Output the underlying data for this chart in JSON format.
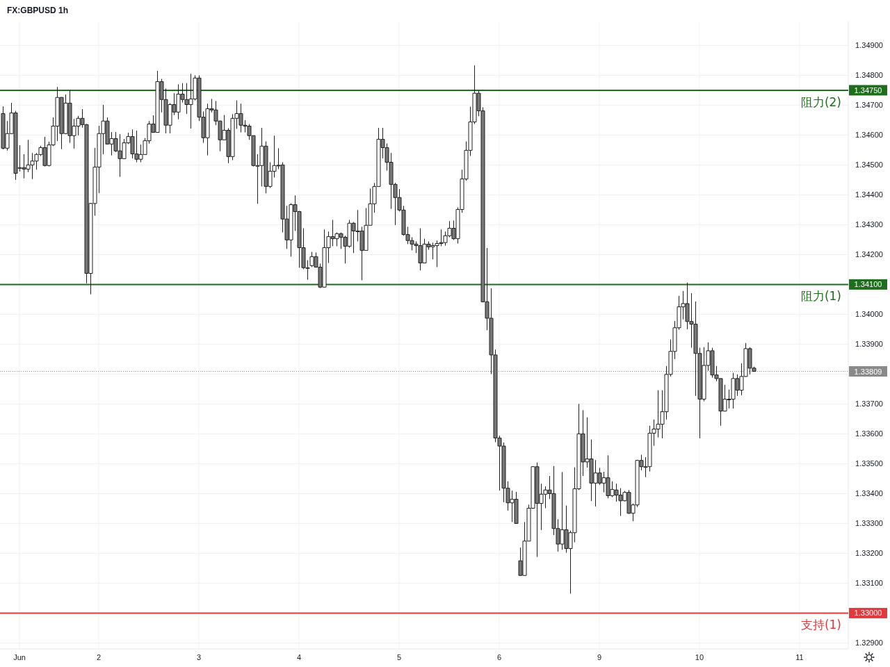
{
  "chart_data": {
    "type": "candlestick",
    "title": "FX:GBPUSD 1h",
    "categories": [
      null,
      null,
      null,
      null,
      "Jun",
      null,
      null,
      null,
      null,
      null,
      null,
      null,
      null,
      null,
      null,
      null,
      null,
      null,
      null,
      null,
      null,
      null,
      null,
      "2",
      null,
      null,
      null,
      null,
      null,
      null,
      null,
      null,
      null,
      null,
      null,
      null,
      null,
      null,
      null,
      null,
      null,
      null,
      null,
      null,
      null,
      null,
      null,
      "3",
      null,
      null,
      null,
      null,
      null,
      null,
      null,
      null,
      null,
      null,
      null,
      null,
      null,
      null,
      null,
      null,
      null,
      null,
      null,
      null,
      null,
      null,
      null,
      "4",
      null,
      null,
      null,
      null,
      null,
      null,
      null,
      null,
      null,
      null,
      null,
      null,
      null,
      null,
      null,
      null,
      null,
      null,
      null,
      null,
      null,
      null,
      null,
      "5",
      null,
      null,
      null,
      null,
      null,
      null,
      null,
      null,
      null,
      null,
      null,
      null,
      null,
      null,
      null,
      null,
      null,
      null,
      null,
      null,
      null,
      null,
      null,
      "6",
      null,
      null,
      null,
      null,
      null,
      null,
      null,
      null,
      null,
      null,
      null,
      null,
      null,
      null,
      null,
      null,
      null,
      null,
      null,
      null,
      null,
      null,
      null,
      "9",
      null,
      null,
      null,
      null,
      null,
      null,
      null,
      null,
      null,
      null,
      null,
      null,
      null,
      null,
      null,
      null,
      null,
      null,
      null,
      null,
      null,
      null,
      null,
      "10",
      null,
      null,
      null,
      null,
      null,
      null,
      null,
      null,
      null,
      null,
      null,
      null,
      null,
      null,
      null,
      null,
      null,
      null,
      null,
      null,
      null,
      null,
      null,
      "11",
      null,
      null,
      null,
      null,
      null,
      null,
      null,
      null,
      null,
      null,
      null
    ],
    "ohlc": [
      [
        1.34672,
        1.34696,
        1.34552,
        1.34556
      ],
      [
        1.34556,
        1.34647,
        1.34548,
        1.34605
      ],
      [
        1.34605,
        1.34708,
        1.34603,
        1.34674
      ],
      [
        1.34674,
        1.34681,
        1.3445,
        1.34472
      ],
      [
        1.34491,
        1.34566,
        1.34478,
        1.34491
      ],
      [
        1.34491,
        1.34536,
        1.34455,
        1.34486
      ],
      [
        1.34486,
        1.34584,
        1.34476,
        1.345
      ],
      [
        1.345,
        1.3454,
        1.34453,
        1.34513
      ],
      [
        1.34513,
        1.3454,
        1.34484,
        1.34535
      ],
      [
        1.34535,
        1.34564,
        1.3453,
        1.34558
      ],
      [
        1.34558,
        1.34594,
        1.34495,
        1.34498
      ],
      [
        1.34498,
        1.34578,
        1.34495,
        1.34567
      ],
      [
        1.34567,
        1.34659,
        1.34563,
        1.3463
      ],
      [
        1.3463,
        1.34761,
        1.3458,
        1.34726
      ],
      [
        1.34726,
        1.34727,
        1.34553,
        1.34605
      ],
      [
        1.34605,
        1.34736,
        1.34603,
        1.34707
      ],
      [
        1.34707,
        1.34751,
        1.34574,
        1.34598
      ],
      [
        1.34598,
        1.34654,
        1.34555,
        1.3463
      ],
      [
        1.3463,
        1.34664,
        1.34599,
        1.34656
      ],
      [
        1.34656,
        1.34687,
        1.34625,
        1.34635
      ],
      [
        1.34635,
        1.34637,
        1.34104,
        1.34137
      ],
      [
        1.34137,
        1.34373,
        1.34067,
        1.34371
      ],
      [
        1.34371,
        1.34557,
        1.3433,
        1.34493
      ],
      [
        1.34493,
        1.34631,
        1.34406,
        1.34605
      ],
      [
        1.34605,
        1.34701,
        1.34536,
        1.34647
      ],
      [
        1.34647,
        1.34659,
        1.34568,
        1.3457
      ],
      [
        1.3457,
        1.3461,
        1.34532,
        1.34588
      ],
      [
        1.34588,
        1.3461,
        1.34543,
        1.34547
      ],
      [
        1.34547,
        1.34603,
        1.3446,
        1.34521
      ],
      [
        1.34521,
        1.34587,
        1.3452,
        1.34574
      ],
      [
        1.34574,
        1.34608,
        1.3457,
        1.34595
      ],
      [
        1.34595,
        1.34619,
        1.34522,
        1.34537
      ],
      [
        1.34537,
        1.34615,
        1.34509,
        1.34519
      ],
      [
        1.34519,
        1.34568,
        1.34509,
        1.34535
      ],
      [
        1.34535,
        1.3459,
        1.34535,
        1.34581
      ],
      [
        1.34581,
        1.34647,
        1.34571,
        1.34637
      ],
      [
        1.34637,
        1.34666,
        1.34609,
        1.34609
      ],
      [
        1.34609,
        1.34815,
        1.34609,
        1.34779
      ],
      [
        1.34779,
        1.34788,
        1.34676,
        1.34719
      ],
      [
        1.34719,
        1.34756,
        1.34606,
        1.34633
      ],
      [
        1.34633,
        1.34707,
        1.34606,
        1.34702
      ],
      [
        1.34702,
        1.3474,
        1.34667,
        1.34677
      ],
      [
        1.34677,
        1.3477,
        1.34653,
        1.34737
      ],
      [
        1.34737,
        1.34774,
        1.34709,
        1.34719
      ],
      [
        1.34719,
        1.34774,
        1.34671,
        1.34702
      ],
      [
        1.34702,
        1.34805,
        1.34622,
        1.34721
      ],
      [
        1.34721,
        1.348,
        1.34716,
        1.34791
      ],
      [
        1.34791,
        1.348,
        1.34647,
        1.3466
      ],
      [
        1.3466,
        1.34679,
        1.34574,
        1.34591
      ],
      [
        1.34591,
        1.34705,
        1.34532,
        1.34688
      ],
      [
        1.34688,
        1.34721,
        1.34676,
        1.34684
      ],
      [
        1.34684,
        1.34714,
        1.34633,
        1.34647
      ],
      [
        1.34647,
        1.34648,
        1.34546,
        1.34584
      ],
      [
        1.34584,
        1.34667,
        1.34583,
        1.34616
      ],
      [
        1.34616,
        1.34623,
        1.34506,
        1.34528
      ],
      [
        1.34528,
        1.3467,
        1.34516,
        1.34656
      ],
      [
        1.34656,
        1.34716,
        1.34621,
        1.34672
      ],
      [
        1.34672,
        1.34705,
        1.34609,
        1.34633
      ],
      [
        1.34633,
        1.3465,
        1.34609,
        1.3463
      ],
      [
        1.3463,
        1.34637,
        1.34584,
        1.34598
      ],
      [
        1.34598,
        1.34599,
        1.34495,
        1.34498
      ],
      [
        1.34498,
        1.34536,
        1.3437,
        1.34498
      ],
      [
        1.34498,
        1.34624,
        1.34428,
        1.34563
      ],
      [
        1.34563,
        1.34579,
        1.34405,
        1.34428
      ],
      [
        1.34428,
        1.34509,
        1.34423,
        1.34479
      ],
      [
        1.34479,
        1.34598,
        1.34458,
        1.34498
      ],
      [
        1.34499,
        1.34556,
        1.34486,
        1.34498
      ],
      [
        1.345,
        1.34509,
        1.34274,
        1.34319
      ],
      [
        1.34319,
        1.34363,
        1.34219,
        1.34249
      ],
      [
        1.34249,
        1.34372,
        1.34193,
        1.34367
      ],
      [
        1.34367,
        1.34398,
        1.34279,
        1.34344
      ],
      [
        1.34344,
        1.34346,
        1.34156,
        1.34223
      ],
      [
        1.34223,
        1.34288,
        1.34151,
        1.34156
      ],
      [
        1.34156,
        1.34181,
        1.34116,
        1.34156
      ],
      [
        1.34163,
        1.34209,
        1.34158,
        1.34193
      ],
      [
        1.34193,
        1.34207,
        1.34157,
        1.34158
      ],
      [
        1.34158,
        1.3417,
        1.34088,
        1.34091
      ],
      [
        1.34091,
        1.34284,
        1.3409,
        1.34223
      ],
      [
        1.34223,
        1.34277,
        1.34172,
        1.3426
      ],
      [
        1.3426,
        1.34316,
        1.34228,
        1.34253
      ],
      [
        1.34253,
        1.34274,
        1.34228,
        1.3427
      ],
      [
        1.3427,
        1.34274,
        1.34219,
        1.34258
      ],
      [
        1.34258,
        1.34263,
        1.3417,
        1.34228
      ],
      [
        1.34228,
        1.34316,
        1.34223,
        1.34305
      ],
      [
        1.34305,
        1.34309,
        1.34205,
        1.34279
      ],
      [
        1.34279,
        1.34349,
        1.34244,
        1.34279
      ],
      [
        1.34279,
        1.34293,
        1.34114,
        1.34214
      ],
      [
        1.34214,
        1.34356,
        1.34214,
        1.34298
      ],
      [
        1.34298,
        1.34421,
        1.34298,
        1.3437
      ],
      [
        1.3437,
        1.3444,
        1.3434,
        1.34428
      ],
      [
        1.34428,
        1.34624,
        1.34428,
        1.34586
      ],
      [
        1.34586,
        1.34624,
        1.34522,
        1.34558
      ],
      [
        1.34558,
        1.34572,
        1.34481,
        1.34509
      ],
      [
        1.34509,
        1.3454,
        1.34353,
        1.34435
      ],
      [
        1.34435,
        1.3444,
        1.34299,
        1.34391
      ],
      [
        1.34391,
        1.34419,
        1.34344,
        1.34349
      ],
      [
        1.34349,
        1.34363,
        1.34263,
        1.34267
      ],
      [
        1.34267,
        1.34293,
        1.34235,
        1.34247
      ],
      [
        1.34247,
        1.34258,
        1.34214,
        1.34235
      ],
      [
        1.34235,
        1.34244,
        1.34205,
        1.3423
      ],
      [
        1.3423,
        1.34288,
        1.34147,
        1.34172
      ],
      [
        1.34172,
        1.34253,
        1.34172,
        1.34235
      ],
      [
        1.34235,
        1.34244,
        1.34216,
        1.34226
      ],
      [
        1.34226,
        1.3424,
        1.34184,
        1.3423
      ],
      [
        1.3423,
        1.34247,
        1.34158,
        1.34237
      ],
      [
        1.3424,
        1.34284,
        1.34228,
        1.34237
      ],
      [
        1.3424,
        1.34277,
        1.3423,
        1.34263
      ],
      [
        1.34263,
        1.34312,
        1.34258,
        1.34288
      ],
      [
        1.34288,
        1.34314,
        1.34249,
        1.34253
      ],
      [
        1.34253,
        1.34358,
        1.34237,
        1.34351
      ],
      [
        1.34351,
        1.34484,
        1.3434,
        1.34453
      ],
      [
        1.34453,
        1.34579,
        1.34447,
        1.34549
      ],
      [
        1.34549,
        1.34695,
        1.3453,
        1.34644
      ],
      [
        1.34644,
        1.34833,
        1.34637,
        1.3474
      ],
      [
        1.3474,
        1.34749,
        1.34663,
        1.34681
      ],
      [
        1.34681,
        1.34693,
        1.3404,
        1.34042
      ],
      [
        1.34042,
        1.34222,
        1.33947,
        1.33987
      ],
      [
        1.33987,
        1.34087,
        1.338,
        1.33864
      ],
      [
        1.33864,
        1.33882,
        1.33572,
        1.33586
      ],
      [
        1.33586,
        1.33594,
        1.3341,
        1.33559
      ],
      [
        1.33559,
        1.33571,
        1.33371,
        1.33418
      ],
      [
        1.33418,
        1.33441,
        1.33343,
        1.33369
      ],
      [
        1.33369,
        1.3341,
        1.33305,
        1.33381
      ],
      [
        1.33381,
        1.33406,
        1.33299,
        1.333
      ],
      [
        1.33175,
        1.33219,
        1.33125,
        1.33126
      ],
      [
        1.33126,
        1.33305,
        1.33125,
        1.33241
      ],
      [
        1.33241,
        1.33363,
        1.33241,
        1.33351
      ],
      [
        1.33351,
        1.33492,
        1.33349,
        1.3349
      ],
      [
        1.3349,
        1.33504,
        1.33188,
        1.33367
      ],
      [
        1.33367,
        1.33433,
        1.33278,
        1.33398
      ],
      [
        1.33398,
        1.33424,
        1.33351,
        1.33412
      ],
      [
        1.33412,
        1.33459,
        1.33382,
        1.334
      ],
      [
        1.334,
        1.33492,
        1.33261,
        1.33283
      ],
      [
        1.33283,
        1.33314,
        1.33206,
        1.33231
      ],
      [
        1.33231,
        1.33472,
        1.33212,
        1.33279
      ],
      [
        1.33279,
        1.3336,
        1.33202,
        1.33216
      ],
      [
        1.33216,
        1.33276,
        1.33065,
        1.33269
      ],
      [
        1.33269,
        1.33488,
        1.33237,
        1.33416
      ],
      [
        1.33416,
        1.337,
        1.33412,
        1.336
      ],
      [
        1.336,
        1.33679,
        1.33459,
        1.33506
      ],
      [
        1.33506,
        1.33655,
        1.33487,
        1.33516
      ],
      [
        1.33516,
        1.33581,
        1.33375,
        1.33435
      ],
      [
        1.33435,
        1.33512,
        1.33357,
        1.33469
      ],
      [
        1.33469,
        1.33486,
        1.33429,
        1.33435
      ],
      [
        1.33435,
        1.33473,
        1.33404,
        1.33453
      ],
      [
        1.33453,
        1.33528,
        1.33384,
        1.33393
      ],
      [
        1.33393,
        1.33441,
        1.33388,
        1.33414
      ],
      [
        1.33412,
        1.33433,
        1.33373,
        1.33395
      ],
      [
        1.33395,
        1.33418,
        1.33325,
        1.33376
      ],
      [
        1.33376,
        1.33409,
        1.33374,
        1.33404
      ],
      [
        1.33404,
        1.33412,
        1.33332,
        1.33334
      ],
      [
        1.33334,
        1.33367,
        1.33308,
        1.33362
      ],
      [
        1.33362,
        1.33513,
        1.33355,
        1.33511
      ],
      [
        1.33511,
        1.3353,
        1.33478,
        1.3349
      ],
      [
        1.3349,
        1.33522,
        1.33455,
        1.3349
      ],
      [
        1.3349,
        1.33627,
        1.33474,
        1.33602
      ],
      [
        1.33602,
        1.33648,
        1.3356,
        1.33616
      ],
      [
        1.33616,
        1.33746,
        1.33588,
        1.33632
      ],
      [
        1.33632,
        1.33746,
        1.33585,
        1.33674
      ],
      [
        1.33674,
        1.33827,
        1.33648,
        1.33799
      ],
      [
        1.33799,
        1.33916,
        1.33792,
        1.33876
      ],
      [
        1.33876,
        1.33978,
        1.3385,
        1.33955
      ],
      [
        1.33955,
        1.34062,
        1.33948,
        1.34025
      ],
      [
        1.34025,
        1.34078,
        1.33983,
        1.34036
      ],
      [
        1.34036,
        1.34106,
        1.3395,
        1.33976
      ],
      [
        1.33976,
        1.34071,
        1.33888,
        1.33967
      ],
      [
        1.33967,
        1.34043,
        1.33727,
        1.33869
      ],
      [
        1.33869,
        1.33888,
        1.33585,
        1.33716
      ],
      [
        1.33716,
        1.3389,
        1.33709,
        1.33829
      ],
      [
        1.33829,
        1.33906,
        1.33811,
        1.33878
      ],
      [
        1.33878,
        1.33888,
        1.33788,
        1.33797
      ],
      [
        1.33797,
        1.33827,
        1.33776,
        1.33785
      ],
      [
        1.33785,
        1.33785,
        1.33627,
        1.33676
      ],
      [
        1.33676,
        1.33764,
        1.33675,
        1.33716
      ],
      [
        1.33716,
        1.33748,
        1.33685,
        1.33716
      ],
      [
        1.33716,
        1.33804,
        1.33685,
        1.33785
      ],
      [
        1.33785,
        1.33799,
        1.33727,
        1.33746
      ],
      [
        1.33746,
        1.33836,
        1.33729,
        1.33792
      ],
      [
        1.33792,
        1.33904,
        1.33791,
        1.33885
      ],
      [
        1.33885,
        1.3389,
        1.33799,
        1.3382
      ],
      [
        1.3382,
        1.33825,
        1.33809,
        1.33809
      ],
      null,
      null,
      null,
      null,
      null,
      null,
      null,
      null,
      null,
      null,
      null,
      null,
      null,
      null,
      null,
      null,
      null,
      null,
      null,
      null,
      null,
      null
    ],
    "color": "#1f1f1f",
    "colors": [
      "#787878",
      "#ffffff",
      "#ffffff",
      "#787878",
      "#ffffff",
      "#787878",
      "#ffffff",
      "#ffffff",
      "#ffffff",
      "#ffffff",
      "#787878",
      "#ffffff",
      "#ffffff",
      "#ffffff",
      "#787878",
      "#ffffff",
      "#787878",
      "#ffffff",
      "#ffffff",
      "#787878",
      "#787878",
      "#ffffff",
      "#ffffff",
      "#ffffff",
      "#ffffff",
      "#787878",
      "#ffffff",
      "#787878",
      "#787878",
      "#ffffff",
      "#ffffff",
      "#787878",
      "#787878",
      "#ffffff",
      "#ffffff",
      "#ffffff",
      "#787878",
      "#ffffff",
      "#787878",
      "#787878",
      "#ffffff",
      "#787878",
      "#ffffff",
      "#787878",
      "#787878",
      "#ffffff",
      "#ffffff",
      "#787878",
      "#787878",
      "#ffffff",
      "#787878",
      "#787878",
      "#787878",
      "#ffffff",
      "#787878",
      "#ffffff",
      "#ffffff",
      "#787878",
      "#787878",
      "#787878",
      "#787878",
      "#ffffff",
      "#ffffff",
      "#787878",
      "#ffffff",
      "#ffffff",
      "#787878",
      "#787878",
      "#787878",
      "#ffffff",
      "#787878",
      "#787878",
      "#787878",
      "#ffffff",
      "#ffffff",
      "#787878",
      "#787878",
      "#ffffff",
      "#ffffff",
      "#787878",
      "#ffffff",
      "#787878",
      "#787878",
      "#ffffff",
      "#787878",
      "#ffffff",
      "#787878",
      "#ffffff",
      "#ffffff",
      "#ffffff",
      "#ffffff",
      "#787878",
      "#787878",
      "#787878",
      "#787878",
      "#787878",
      "#787878",
      "#787878",
      "#787878",
      "#787878",
      "#787878",
      "#ffffff",
      "#787878",
      "#ffffff",
      "#ffffff",
      "#787878",
      "#ffffff",
      "#ffffff",
      "#787878",
      "#ffffff",
      "#ffffff",
      "#ffffff",
      "#ffffff",
      "#ffffff",
      "#787878",
      "#787878",
      "#787878",
      "#787878",
      "#787878",
      "#787878",
      "#787878",
      "#787878",
      "#ffffff",
      "#787878",
      "#787878",
      "#ffffff",
      "#ffffff",
      "#ffffff",
      "#787878",
      "#ffffff",
      "#ffffff",
      "#787878",
      "#787878",
      "#787878",
      "#ffffff",
      "#787878",
      "#ffffff",
      "#ffffff",
      "#ffffff",
      "#787878",
      "#ffffff",
      "#787878",
      "#ffffff",
      "#787878",
      "#ffffff",
      "#787878",
      "#ffffff",
      "#787878",
      "#787878",
      "#ffffff",
      "#787878",
      "#ffffff",
      "#ffffff",
      "#787878",
      "#ffffff",
      "#ffffff",
      "#ffffff",
      "#ffffff",
      "#ffffff",
      "#ffffff",
      "#ffffff",
      "#ffffff",
      "#ffffff",
      "#ffffff",
      "#787878",
      "#787878",
      "#787878",
      "#787878",
      "#ffffff",
      "#ffffff",
      "#787878",
      "#787878",
      "#787878",
      "#ffffff",
      "#ffffff",
      "#ffffff",
      "#787878",
      "#ffffff",
      "#ffffff",
      "#787878",
      "#787878",
      null,
      null,
      null,
      null,
      null,
      null,
      null,
      null,
      null,
      null,
      null,
      null,
      null,
      null,
      null,
      null,
      null,
      null,
      null,
      null,
      null,
      null
    ],
    "ylim": [
      1.3288,
      1.3498
    ],
    "yticks": [
      {
        "value": 1.329,
        "label": "1.32900"
      },
      {
        "value": 1.33,
        "label": null
      },
      {
        "value": 1.331,
        "label": "1.33100"
      },
      {
        "value": 1.332,
        "label": "1.33200"
      },
      {
        "value": 1.333,
        "label": "1.33300"
      },
      {
        "value": 1.334,
        "label": "1.33400"
      },
      {
        "value": 1.335,
        "label": "1.33500"
      },
      {
        "value": 1.336,
        "label": "1.33600"
      },
      {
        "value": 1.337,
        "label": "1.33700"
      },
      {
        "value": 1.338,
        "label": null
      },
      {
        "value": 1.339,
        "label": "1.33900"
      },
      {
        "value": 1.34,
        "label": "1.34000"
      },
      {
        "value": 1.341,
        "label": null
      },
      {
        "value": 1.342,
        "label": "1.34200"
      },
      {
        "value": 1.343,
        "label": "1.34300"
      },
      {
        "value": 1.344,
        "label": "1.34400"
      },
      {
        "value": 1.345,
        "label": "1.34500"
      },
      {
        "value": 1.346,
        "label": "1.34600"
      },
      {
        "value": 1.347,
        "label": "1.34700"
      },
      {
        "value": 1.348,
        "label": "1.34800"
      },
      {
        "value": 1.349,
        "label": "1.34900"
      }
    ],
    "grid": true,
    "ref_lines": [
      {
        "axis": "y",
        "value": 1.3475,
        "label": "阻力(2)",
        "color": "#1e6e1e",
        "line_style": "solid"
      },
      {
        "axis": "y",
        "value": 1.341,
        "label": "阻力(1)",
        "color": "#1e6e1e",
        "line_style": "solid"
      },
      {
        "axis": "y",
        "value": 1.33,
        "label": "支持(1)",
        "color": "#e0393e",
        "line_style": "solid"
      },
      {
        "axis": "y",
        "value": 1.33809,
        "color": "#8a8a8a",
        "line_style": "dotted"
      }
    ],
    "annotations": [
      "1.34750",
      "1.34100",
      "1.33000",
      "1.33809"
    ]
  }
}
